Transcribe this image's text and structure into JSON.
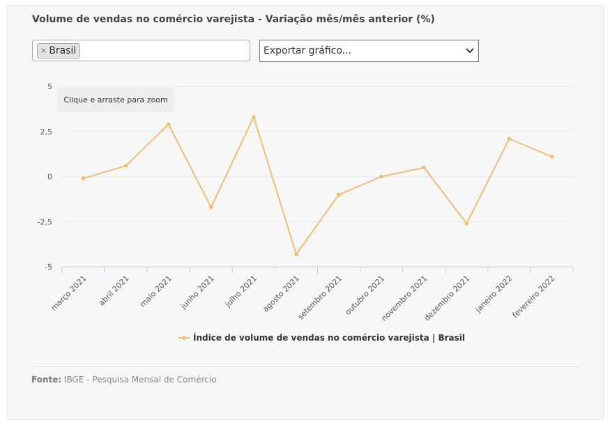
{
  "card": {
    "title": "Volume de vendas no comércio varejista - Variação mês/mês anterior (%)",
    "filter": {
      "chip_remove": "×",
      "chip_label": "Brasil"
    },
    "export": {
      "label": "Exportar gráfico...",
      "arrow": "⌄"
    },
    "zoom_hint": "Clique e arraste para zoom",
    "footer": {
      "source_label": "Fonte:",
      "source_text": " IBGE - Pesquisa Mensal de Comércio"
    }
  },
  "chart_data": {
    "type": "line",
    "title": "Volume de vendas no comércio varejista - Variação mês/mês anterior (%)",
    "categories": [
      "março 2021",
      "abril 2021",
      "maio 2021",
      "junho 2021",
      "julho 2021",
      "agosto 2021",
      "setembro 2021",
      "outubro 2021",
      "novembro 2021",
      "dezembro 2021",
      "janeiro 2022",
      "fevereiro 2022"
    ],
    "series": [
      {
        "name": "Índice de volume de vendas no comércio varejista | Brasil",
        "values": [
          -0.1,
          0.6,
          2.9,
          -1.7,
          3.3,
          -4.3,
          -1.0,
          0.0,
          0.5,
          -2.6,
          2.1,
          1.1
        ]
      }
    ],
    "ylim": [
      -5,
      5
    ],
    "yticks": [
      "5",
      "2,5",
      "0",
      "-2,5",
      "-5"
    ],
    "ytick_values": [
      5,
      2.5,
      0,
      -2.5,
      -5
    ],
    "line_color": "#f1bd73",
    "grid": true,
    "legend": "bottom-center"
  }
}
